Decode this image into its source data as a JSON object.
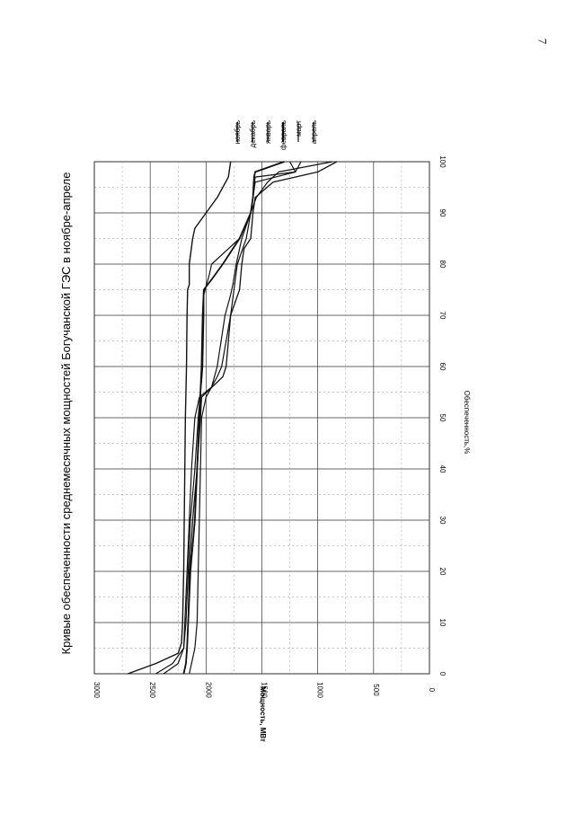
{
  "page": {
    "number": "7"
  },
  "chart_data": {
    "type": "line",
    "title": "Кривые обеспеченности среднемесячных мощностей Богучанской ГЭС в ноябре-апреле",
    "xlabel": "Обеспеченность,%",
    "ylabel": "Мощность, МВт",
    "xlim": [
      0,
      100
    ],
    "ylim": [
      0,
      3000
    ],
    "x_ticks": [
      0,
      10,
      20,
      30,
      40,
      50,
      60,
      70,
      80,
      90,
      100
    ],
    "y_ticks": [
      0,
      500,
      1000,
      1500,
      2000,
      2500,
      3000
    ],
    "grid": true,
    "orientation": "rotated 90° (page in landscape)",
    "legend_position": "right",
    "series": [
      {
        "name": "ноябрь",
        "color": "#111111",
        "x": [
          0,
          2,
          4,
          6,
          10,
          20,
          30,
          40,
          50,
          55,
          60,
          70,
          75,
          76,
          80,
          85,
          87,
          90,
          93,
          97,
          100
        ],
        "y": [
          2700,
          2450,
          2250,
          2220,
          2210,
          2200,
          2195,
          2190,
          2185,
          2180,
          2175,
          2170,
          2165,
          2150,
          2150,
          2120,
          2100,
          2000,
          1900,
          1800,
          1780
        ]
      },
      {
        "name": "декабрь",
        "color": "#111111",
        "x": [
          0,
          2,
          5,
          10,
          20,
          30,
          40,
          50,
          55,
          57,
          60,
          70,
          74,
          78,
          80,
          85,
          90,
          93,
          96,
          98,
          100
        ],
        "y": [
          2450,
          2300,
          2200,
          2180,
          2160,
          2140,
          2100,
          2070,
          2050,
          2040,
          2030,
          2020,
          2020,
          1970,
          1950,
          1700,
          1600,
          1550,
          1450,
          1350,
          870
        ]
      },
      {
        "name": "январь",
        "color": "#111111",
        "x": [
          0,
          2,
          5,
          10,
          20,
          30,
          40,
          50,
          54,
          56,
          60,
          70,
          74,
          76,
          80,
          85,
          90,
          93,
          97,
          98,
          100
        ],
        "y": [
          2380,
          2250,
          2200,
          2190,
          2170,
          2150,
          2130,
          2100,
          2060,
          1950,
          1900,
          1830,
          1780,
          1760,
          1730,
          1680,
          1600,
          1580,
          1560,
          1200,
          1250
        ]
      },
      {
        "name": "февраль",
        "color": "#111111",
        "x": [
          0,
          2,
          5,
          10,
          20,
          30,
          40,
          50,
          55,
          60,
          70,
          75,
          77,
          80,
          85,
          90,
          93,
          97,
          98,
          100
        ],
        "y": [
          2200,
          2180,
          2170,
          2160,
          2140,
          2100,
          2080,
          2060,
          2050,
          2040,
          2030,
          2020,
          1950,
          1850,
          1700,
          1600,
          1580,
          1570,
          1560,
          1300
        ]
      },
      {
        "name": "март",
        "color": "#111111",
        "x": [
          0,
          2,
          5,
          10,
          20,
          30,
          40,
          50,
          54,
          58,
          60,
          70,
          75,
          80,
          85,
          90,
          93,
          96,
          98,
          100
        ],
        "y": [
          2150,
          2130,
          2100,
          2080,
          2070,
          2060,
          2050,
          2040,
          2000,
          1900,
          1860,
          1780,
          1750,
          1720,
          1640,
          1600,
          1580,
          1560,
          1200,
          1150
        ]
      },
      {
        "name": "апрель",
        "color": "#111111",
        "x": [
          0,
          2,
          5,
          10,
          20,
          30,
          40,
          50,
          54,
          58,
          60,
          70,
          75,
          80,
          83,
          85,
          90,
          93,
          96,
          98,
          100
        ],
        "y": [
          2200,
          2180,
          2170,
          2160,
          2150,
          2120,
          2080,
          2050,
          2040,
          1850,
          1820,
          1780,
          1700,
          1680,
          1660,
          1600,
          1580,
          1560,
          1400,
          1000,
          830
        ]
      }
    ]
  }
}
